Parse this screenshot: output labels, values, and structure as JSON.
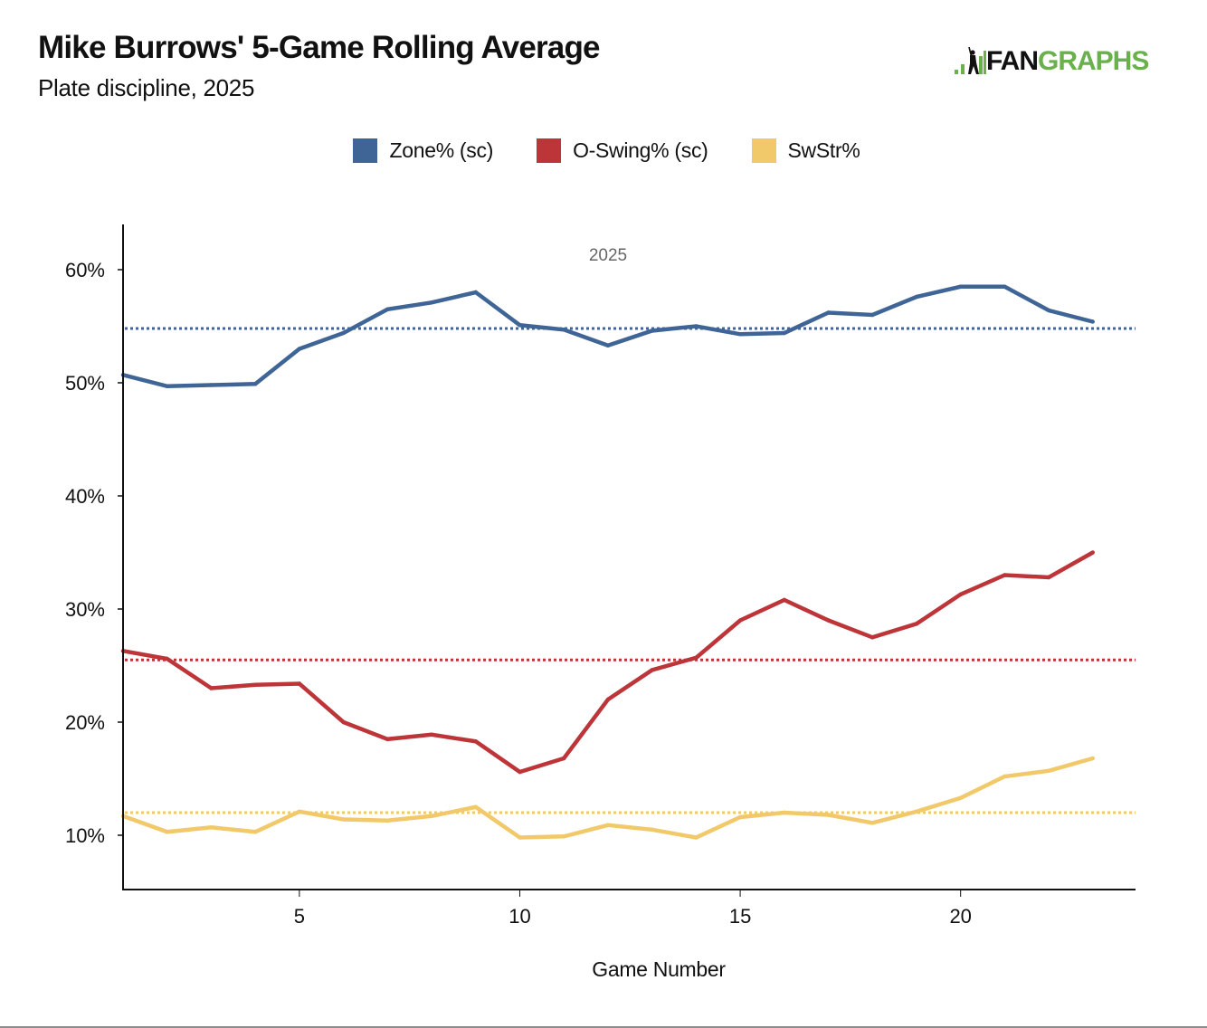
{
  "header": {
    "title": "Mike Burrows' 5-Game Rolling Average",
    "subtitle": "Plate discipline, 2025"
  },
  "logo": {
    "fan": "FAN",
    "graphs": "GRAPHS",
    "colors": {
      "fan": "#111111",
      "graphs": "#6ab04c"
    }
  },
  "chart_data": {
    "type": "line",
    "title": "Mike Burrows' 5-Game Rolling Average",
    "subtitle": "Plate discipline, 2025",
    "xlabel": "Game Number",
    "ylabel": "",
    "annotation": "2025",
    "xlim": [
      1,
      23.9
    ],
    "ylim": [
      5.2,
      64
    ],
    "grid": false,
    "legend_position": "top-center",
    "x_ticks": [
      5,
      10,
      15,
      20
    ],
    "x_tick_labels": [
      "5",
      "10",
      "15",
      "20"
    ],
    "y_ticks": [
      10,
      20,
      30,
      40,
      50,
      60
    ],
    "y_tick_labels": [
      "10%",
      "20%",
      "30%",
      "40%",
      "50%",
      "60%"
    ],
    "x": [
      1,
      2,
      3,
      4,
      5,
      6,
      7,
      8,
      9,
      10,
      11,
      12,
      13,
      14,
      15,
      16,
      17,
      18,
      19,
      20,
      21,
      22,
      23
    ],
    "series": [
      {
        "name": "Zone% (sc)",
        "color": "#3f6597",
        "average": 54.8,
        "values": [
          50.7,
          49.7,
          49.8,
          49.9,
          53.0,
          54.4,
          56.5,
          57.1,
          58.0,
          55.1,
          54.7,
          53.3,
          54.6,
          55.0,
          54.3,
          54.4,
          56.2,
          56.0,
          57.6,
          58.5,
          58.5,
          56.4,
          55.4
        ]
      },
      {
        "name": "O-Swing% (sc)",
        "color": "#bd3538",
        "average": 25.5,
        "values": [
          26.3,
          25.6,
          23.0,
          23.3,
          23.4,
          20.0,
          18.5,
          18.9,
          18.3,
          15.6,
          16.8,
          22.0,
          24.6,
          25.7,
          29.0,
          30.8,
          29.0,
          27.5,
          28.7,
          31.3,
          33.0,
          32.8,
          35.0
        ]
      },
      {
        "name": "SwStr%",
        "color": "#f2c96a",
        "average": 12.0,
        "values": [
          11.7,
          10.3,
          10.7,
          10.3,
          12.1,
          11.4,
          11.3,
          11.7,
          12.5,
          9.8,
          9.9,
          10.9,
          10.5,
          9.8,
          11.6,
          12.0,
          11.8,
          11.1,
          12.1,
          13.3,
          15.2,
          15.7,
          16.8
        ]
      }
    ]
  }
}
